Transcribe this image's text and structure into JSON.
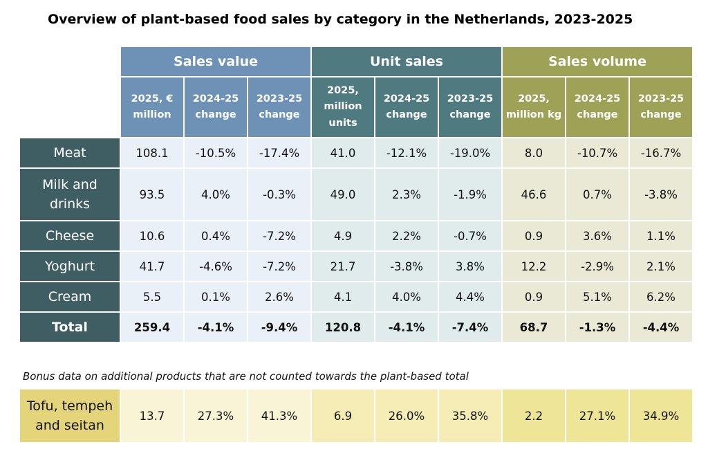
{
  "title": "Overview of plant-based food sales by category in the Netherlands, 2023-2025",
  "groups": [
    "Sales value",
    "Unit sales",
    "Sales volume"
  ],
  "subheaders": [
    [
      "2025, €",
      "million"
    ],
    [
      "2024-25",
      "change"
    ],
    [
      "2023-25",
      "change"
    ],
    [
      "2025,",
      "million",
      "units"
    ],
    [
      "2024-25",
      "change"
    ],
    [
      "2023-25",
      "change"
    ],
    [
      "2025,",
      "million kg"
    ],
    [
      "2024-25",
      "change"
    ],
    [
      "2023-25",
      "change"
    ]
  ],
  "rows": [
    {
      "label": [
        "Meat"
      ],
      "values": [
        "108.1",
        "-10.5%",
        "-17.4%",
        "41.0",
        "-12.1%",
        "-19.0%",
        "8.0",
        "-10.7%",
        "-16.7%"
      ]
    },
    {
      "label": [
        "Milk and",
        "drinks"
      ],
      "values": [
        "93.5",
        "4.0%",
        "-0.3%",
        "49.0",
        "2.3%",
        "-1.9%",
        "46.6",
        "0.7%",
        "-3.8%"
      ]
    },
    {
      "label": [
        "Cheese"
      ],
      "values": [
        "10.6",
        "0.4%",
        "-7.2%",
        "4.9",
        "2.2%",
        "-0.7%",
        "0.9",
        "3.6%",
        "1.1%"
      ]
    },
    {
      "label": [
        "Yoghurt"
      ],
      "values": [
        "41.7",
        "-4.6%",
        "-7.2%",
        "21.7",
        "-3.8%",
        "3.8%",
        "12.2",
        "-2.9%",
        "2.1%"
      ]
    },
    {
      "label": [
        "Cream"
      ],
      "values": [
        "5.5",
        "0.1%",
        "2.6%",
        "4.1",
        "4.0%",
        "4.4%",
        "0.9",
        "5.1%",
        "6.2%"
      ]
    }
  ],
  "total": {
    "label": [
      "Total"
    ],
    "values": [
      "259.4",
      "-4.1%",
      "-9.4%",
      "120.8",
      "-4.1%",
      "-7.4%",
      "68.7",
      "-1.3%",
      "-4.4%"
    ]
  },
  "bonus_note": "Bonus data on additional products that are not counted towards the plant-based total",
  "bonus_row": {
    "label": [
      "Tofu, tempeh",
      "and seitan"
    ],
    "values": [
      "13.7",
      "27.3%",
      "41.3%",
      "6.9",
      "26.0%",
      "35.8%",
      "2.2",
      "27.1%",
      "34.9%"
    ]
  },
  "chart_data": {
    "type": "table",
    "title": "Overview of plant-based food sales by category in the Netherlands, 2023-2025",
    "column_groups": [
      {
        "name": "Sales value",
        "columns": [
          "2025, € million",
          "2024-25 change",
          "2023-25 change"
        ]
      },
      {
        "name": "Unit sales",
        "columns": [
          "2025, million units",
          "2024-25 change",
          "2023-25 change"
        ]
      },
      {
        "name": "Sales volume",
        "columns": [
          "2025, million kg",
          "2024-25 change",
          "2023-25 change"
        ]
      }
    ],
    "row_labels": [
      "Meat",
      "Milk and drinks",
      "Cheese",
      "Yoghurt",
      "Cream",
      "Total",
      "Tofu, tempeh and seitan"
    ],
    "values": [
      [
        108.1,
        -10.5,
        -17.4,
        41.0,
        -12.1,
        -19.0,
        8.0,
        -10.7,
        -16.7
      ],
      [
        93.5,
        4.0,
        -0.3,
        49.0,
        2.3,
        -1.9,
        46.6,
        0.7,
        -3.8
      ],
      [
        10.6,
        0.4,
        -7.2,
        4.9,
        2.2,
        -0.7,
        0.9,
        3.6,
        1.1
      ],
      [
        41.7,
        -4.6,
        -7.2,
        21.7,
        -3.8,
        3.8,
        12.2,
        -2.9,
        2.1
      ],
      [
        5.5,
        0.1,
        2.6,
        4.1,
        4.0,
        4.4,
        0.9,
        5.1,
        6.2
      ],
      [
        259.4,
        -4.1,
        -9.4,
        120.8,
        -4.1,
        -7.4,
        68.7,
        -1.3,
        -4.4
      ],
      [
        13.7,
        27.3,
        41.3,
        6.9,
        26.0,
        35.8,
        2.2,
        27.1,
        34.9
      ]
    ]
  }
}
